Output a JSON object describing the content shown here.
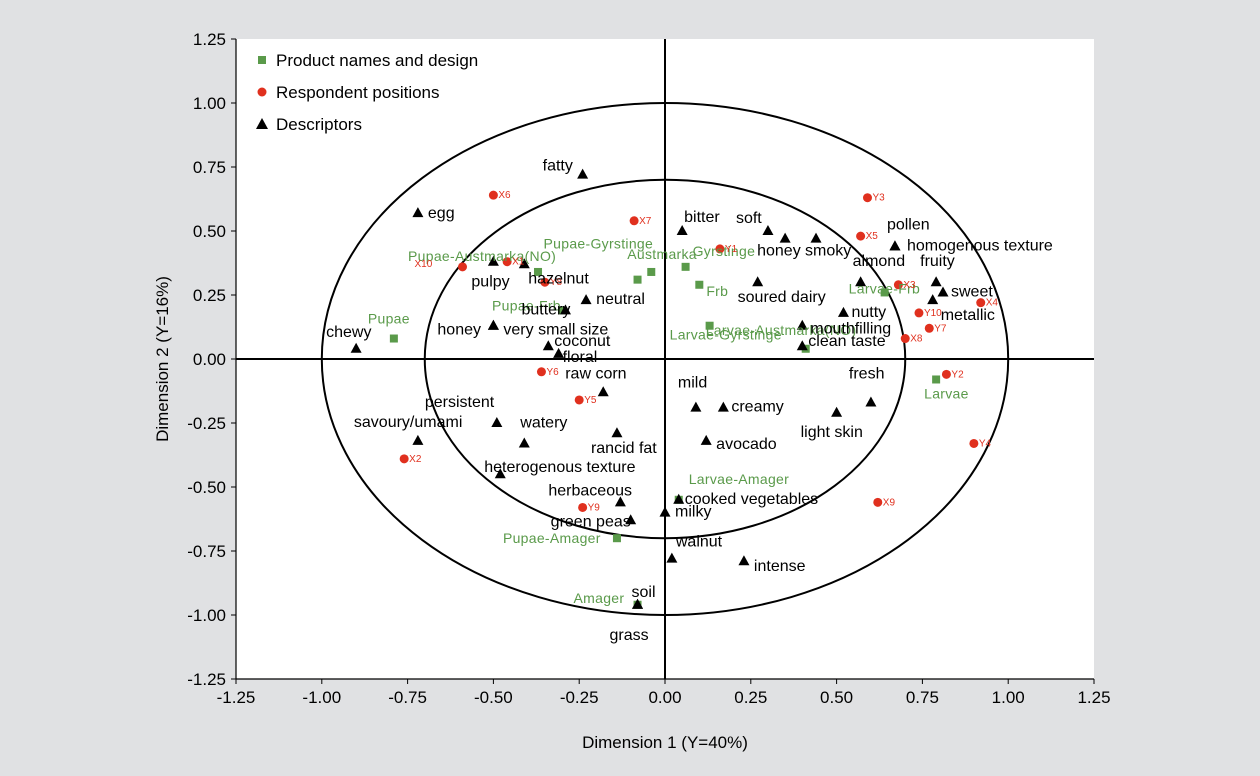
{
  "chart_data": {
    "type": "scatter",
    "title": "",
    "xlabel": "Dimension 1 (Y=40%)",
    "ylabel": "Dimension 2 (Y=16%)",
    "xlim": [
      -1.25,
      1.25
    ],
    "ylim": [
      -1.25,
      1.25
    ],
    "x_ticks": [
      "-1.25",
      "-1.00",
      "-0.75",
      "-0.50",
      "-0.25",
      "0.00",
      "0.25",
      "0.50",
      "0.75",
      "1.00",
      "1.25"
    ],
    "y_ticks": [
      "1.25",
      "1.00",
      "0.75",
      "0.50",
      "0.25",
      "0.00",
      "-0.25",
      "-0.50",
      "-0.75",
      "-1.00",
      "-1.25"
    ],
    "grid": false,
    "legend_position": "top-left",
    "correlation_circles": [
      1.0,
      0.7
    ],
    "colors": {
      "product": "#5a9a4a",
      "respondent": "#e0301e",
      "descriptor": "#000000",
      "label_product": "#5a9a4a",
      "label_respondent": "#e0301e"
    },
    "series": [
      {
        "name": "Product names and design",
        "marker": "square",
        "points": [
          {
            "label": "Pupae-Austmarka(NO)",
            "x": -0.37,
            "y": 0.34
          },
          {
            "label": "Pupae",
            "x": -0.79,
            "y": 0.08
          },
          {
            "label": "Pupae-Gyrstinge",
            "x": -0.08,
            "y": 0.31
          },
          {
            "label": "Austmarka",
            "x": -0.04,
            "y": 0.34
          },
          {
            "label": "Pupae-Frb",
            "x": -0.3,
            "y": 0.19
          },
          {
            "label": "Gyrstinge",
            "x": 0.06,
            "y": 0.36
          },
          {
            "label": "Frb",
            "x": 0.1,
            "y": 0.29
          },
          {
            "label": "Larvae-Gyrstinge",
            "x": 0.13,
            "y": 0.13
          },
          {
            "label": "Larvae-Frb",
            "x": 0.64,
            "y": 0.26
          },
          {
            "label": "Larvae-Austmarka(NO)",
            "x": 0.41,
            "y": 0.04
          },
          {
            "label": "Larvae",
            "x": 0.79,
            "y": -0.08
          },
          {
            "label": "Larvae-Amager",
            "x": 0.04,
            "y": -0.55
          },
          {
            "label": "Pupae-Amager",
            "x": -0.14,
            "y": -0.7
          },
          {
            "label": "Amager",
            "x": -0.08,
            "y": -0.96
          }
        ]
      },
      {
        "name": "Respondent positions",
        "marker": "circle",
        "points": [
          {
            "label": "X6",
            "x": -0.5,
            "y": 0.64
          },
          {
            "label": "X7",
            "x": -0.09,
            "y": 0.54
          },
          {
            "label": "X10",
            "x": -0.59,
            "y": 0.36
          },
          {
            "label": "X1",
            "x": -0.46,
            "y": 0.38
          },
          {
            "label": "Y8",
            "x": -0.35,
            "y": 0.3
          },
          {
            "label": "Y1",
            "x": 0.16,
            "y": 0.43
          },
          {
            "label": "Y3",
            "x": 0.59,
            "y": 0.63
          },
          {
            "label": "X5",
            "x": 0.57,
            "y": 0.48
          },
          {
            "label": "X3",
            "x": 0.68,
            "y": 0.29
          },
          {
            "label": "X4",
            "x": 0.92,
            "y": 0.22
          },
          {
            "label": "Y10",
            "x": 0.74,
            "y": 0.18
          },
          {
            "label": "Y7",
            "x": 0.77,
            "y": 0.12
          },
          {
            "label": "X8",
            "x": 0.7,
            "y": 0.08
          },
          {
            "label": "Y6",
            "x": -0.36,
            "y": -0.05
          },
          {
            "label": "Y5",
            "x": -0.25,
            "y": -0.16
          },
          {
            "label": "Y2",
            "x": 0.82,
            "y": -0.06
          },
          {
            "label": "Y4",
            "x": 0.9,
            "y": -0.33
          },
          {
            "label": "X2",
            "x": -0.76,
            "y": -0.39
          },
          {
            "label": "Y9",
            "x": -0.24,
            "y": -0.58
          },
          {
            "label": "X9",
            "x": 0.62,
            "y": -0.56
          }
        ]
      },
      {
        "name": "Descriptors",
        "marker": "triangle",
        "points": [
          {
            "label": "fatty",
            "x": -0.24,
            "y": 0.72
          },
          {
            "label": "egg",
            "x": -0.72,
            "y": 0.57
          },
          {
            "label": "bitter",
            "x": 0.05,
            "y": 0.5
          },
          {
            "label": "soft",
            "x": 0.3,
            "y": 0.5
          },
          {
            "label": "honey",
            "x": 0.35,
            "y": 0.47
          },
          {
            "label": "smoky",
            "x": 0.44,
            "y": 0.47
          },
          {
            "label": "pollen",
            "x": 0.67,
            "y": 0.44
          },
          {
            "label": "homogenous texture",
            "x": 0.67,
            "y": 0.44
          },
          {
            "label": "pulpy",
            "x": -0.5,
            "y": 0.38
          },
          {
            "label": "hazelnut",
            "x": -0.41,
            "y": 0.37
          },
          {
            "label": "almond",
            "x": 0.57,
            "y": 0.3
          },
          {
            "label": "fruity",
            "x": 0.79,
            "y": 0.3
          },
          {
            "label": "sweet",
            "x": 0.81,
            "y": 0.26
          },
          {
            "label": "buttery",
            "x": -0.29,
            "y": 0.19
          },
          {
            "label": "neutral",
            "x": -0.23,
            "y": 0.23
          },
          {
            "label": "soured dairy",
            "x": 0.27,
            "y": 0.3
          },
          {
            "label": "metallic",
            "x": 0.78,
            "y": 0.23
          },
          {
            "label": "nutty",
            "x": 0.52,
            "y": 0.18
          },
          {
            "label": "honey",
            "x": -0.5,
            "y": 0.13
          },
          {
            "label": "very small size",
            "x": -0.5,
            "y": 0.13
          },
          {
            "label": "mouthfilling",
            "x": 0.4,
            "y": 0.13
          },
          {
            "label": "clean taste",
            "x": 0.4,
            "y": 0.05
          },
          {
            "label": "coconut",
            "x": -0.34,
            "y": 0.05
          },
          {
            "label": "chewy",
            "x": -0.9,
            "y": 0.04
          },
          {
            "label": "floral",
            "x": -0.31,
            "y": 0.02
          },
          {
            "label": "raw corn",
            "x": -0.18,
            "y": -0.13
          },
          {
            "label": "mild",
            "x": 0.09,
            "y": -0.19
          },
          {
            "label": "creamy",
            "x": 0.17,
            "y": -0.19
          },
          {
            "label": "fresh",
            "x": 0.6,
            "y": -0.17
          },
          {
            "label": "persistent",
            "x": -0.49,
            "y": -0.25
          },
          {
            "label": "light skin",
            "x": 0.5,
            "y": -0.21
          },
          {
            "label": "watery",
            "x": -0.41,
            "y": -0.33
          },
          {
            "label": "rancid fat",
            "x": -0.14,
            "y": -0.29
          },
          {
            "label": "avocado",
            "x": 0.12,
            "y": -0.32
          },
          {
            "label": "savoury/umami",
            "x": -0.72,
            "y": -0.32
          },
          {
            "label": "heterogenous texture",
            "x": -0.48,
            "y": -0.45
          },
          {
            "label": "herbaceous",
            "x": -0.13,
            "y": -0.56
          },
          {
            "label": "cooked vegetables",
            "x": 0.04,
            "y": -0.55
          },
          {
            "label": "green peas",
            "x": -0.1,
            "y": -0.63
          },
          {
            "label": "milky",
            "x": 0.0,
            "y": -0.6
          },
          {
            "label": "walnut",
            "x": 0.02,
            "y": -0.78
          },
          {
            "label": "intense",
            "x": 0.23,
            "y": -0.79
          },
          {
            "label": "soil",
            "x": -0.08,
            "y": -0.96
          },
          {
            "label": "grass",
            "x": -0.08,
            "y": -0.96
          }
        ]
      }
    ]
  }
}
